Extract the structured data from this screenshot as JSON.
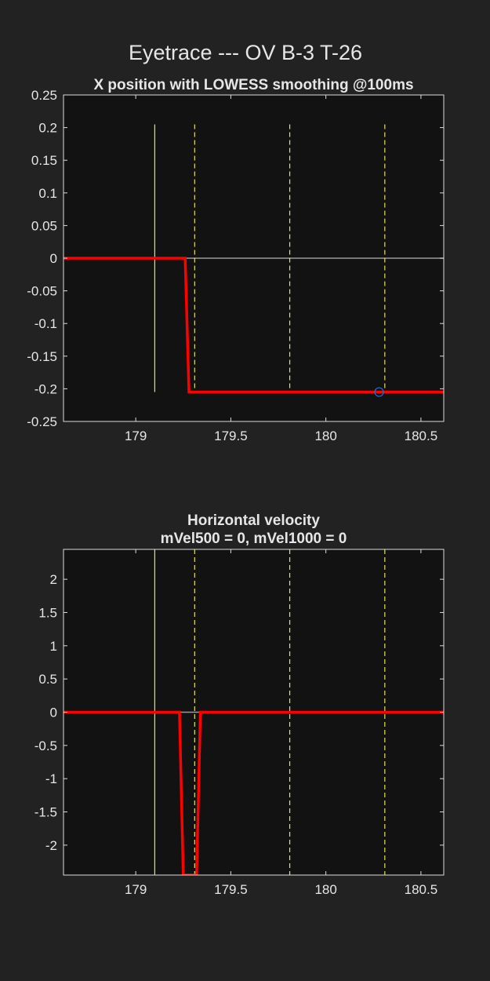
{
  "figure": {
    "title": "Eyetrace --- OV B-3 T-26"
  },
  "colors": {
    "background": "#222222",
    "axes_background": "#121212",
    "axes_edge": "#dcdcdc",
    "trace": "#ff0000",
    "event_line": "#e5e05a",
    "zero_line": "#9a9a9a",
    "marker": "#2f6bd0"
  },
  "chart_data": [
    {
      "type": "line",
      "title": "X position with LOWESS smoothing @100ms",
      "xlabel": "",
      "ylabel": "",
      "xlim": [
        178.62,
        180.62
      ],
      "ylim": [
        -0.25,
        0.25
      ],
      "xticks": [
        179,
        179.5,
        180,
        180.5
      ],
      "xtick_labels": [
        "179",
        "179.5",
        "180",
        "180.5"
      ],
      "yticks": [
        0.25,
        0.2,
        0.15,
        0.1,
        0.05,
        0,
        -0.05,
        -0.1,
        -0.15,
        -0.2,
        -0.25
      ],
      "ytick_labels": [
        "0.25",
        "0.2",
        "0.15",
        "0.1",
        "0.05",
        "0",
        "-0.05",
        "-0.1",
        "-0.15",
        "-0.2",
        "-0.25"
      ],
      "grid": false,
      "event_lines": [
        {
          "x": 179.1,
          "style": "solid",
          "y_range": [
            -0.205,
            0.205
          ]
        },
        {
          "x": 179.31,
          "style": "dashed",
          "y_range": [
            -0.205,
            0.205
          ]
        },
        {
          "x": 179.81,
          "style": "dashed",
          "y_range": [
            -0.205,
            0.205
          ]
        },
        {
          "x": 180.31,
          "style": "dashed",
          "y_range": [
            -0.205,
            0.205
          ]
        }
      ],
      "reference_line": {
        "y": 0
      },
      "series": [
        {
          "x": [
            178.62,
            179.26,
            179.28,
            180.62
          ],
          "y": [
            0,
            0,
            -0.205,
            -0.205
          ]
        }
      ],
      "markers": [
        {
          "x": 180.28,
          "y": -0.205,
          "shape": "open-circle"
        }
      ]
    },
    {
      "type": "line",
      "title": "Horizontal velocity\nmVel500 = 0, mVel1000 = 0",
      "xlabel": "",
      "ylabel": "",
      "xlim": [
        178.62,
        180.62
      ],
      "ylim": [
        -2.45,
        2.45
      ],
      "xticks": [
        179,
        179.5,
        180,
        180.5
      ],
      "xtick_labels": [
        "179",
        "179.5",
        "180",
        "180.5"
      ],
      "yticks": [
        2,
        1.5,
        1,
        0.5,
        0,
        -0.5,
        -1,
        -1.5,
        -2
      ],
      "ytick_labels": [
        "2",
        "1.5",
        "1",
        "0.5",
        "0",
        "-0.5",
        "-1",
        "-1.5",
        "-2"
      ],
      "grid": false,
      "event_lines": [
        {
          "x": 179.1,
          "style": "solid",
          "y_range": [
            -2.45,
            2.45
          ]
        },
        {
          "x": 179.31,
          "style": "dashed",
          "y_range": [
            -2.45,
            2.45
          ]
        },
        {
          "x": 179.81,
          "style": "dashed",
          "y_range": [
            -2.45,
            2.45
          ]
        },
        {
          "x": 180.31,
          "style": "dashed",
          "y_range": [
            -2.45,
            2.45
          ]
        }
      ],
      "reference_line": {
        "y": 0
      },
      "series": [
        {
          "x": [
            178.62,
            179.23,
            179.25,
            179.32,
            179.34,
            180.62
          ],
          "y": [
            0,
            0,
            -2.45,
            -2.45,
            0,
            0
          ]
        }
      ],
      "markers": []
    }
  ]
}
